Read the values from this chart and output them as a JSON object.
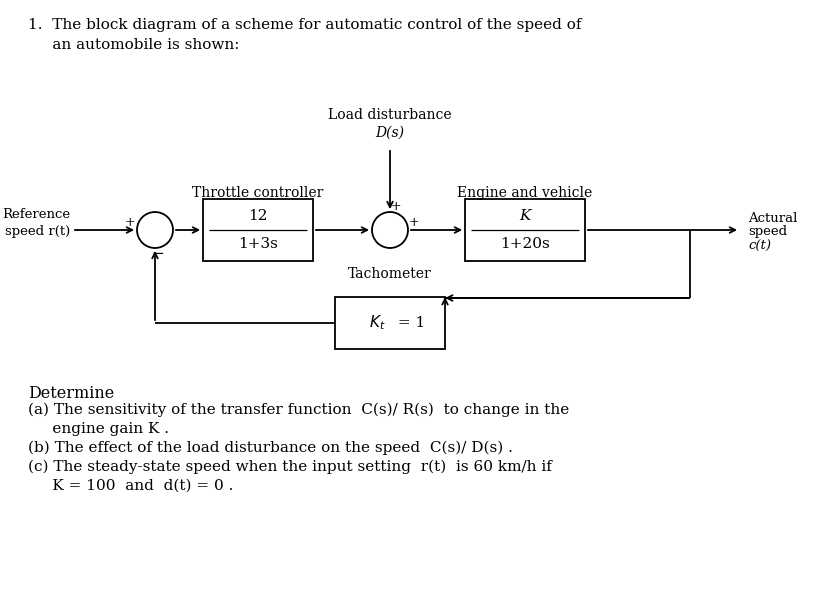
{
  "title_line1": "1.  The block diagram of a scheme for automatic control of the speed of",
  "title_line2": "     an automobile is shown:",
  "load_disturbance": "Load disturbance",
  "Ds": "D(s)",
  "ref1": "Reference",
  "ref2": "speed r(t)",
  "throttle": "Throttle controller",
  "engine": "Engine and vehicle",
  "tachometer": "Tachometer",
  "act1": "Actural",
  "act2": "speed",
  "act3": "c(t)",
  "b1t": "12",
  "b1b": "1+3s",
  "b2t": "K",
  "b2b": "1+20s",
  "fb": "K, = 1",
  "det": "Determine",
  "pa1": "(a) The sensitivity of the transfer function  C(s)/ R(s)  to change in the",
  "pa2": "     engine gain K .",
  "pb": "(b) The effect of the load disturbance on the speed  C(s)/ D(s) .",
  "pc1": "(c) The steady-state speed when the input setting  r(t)  is 60 km/h if",
  "pc2": "     K = 100  and  d(t) = 0 .",
  "bg": "#ffffff"
}
